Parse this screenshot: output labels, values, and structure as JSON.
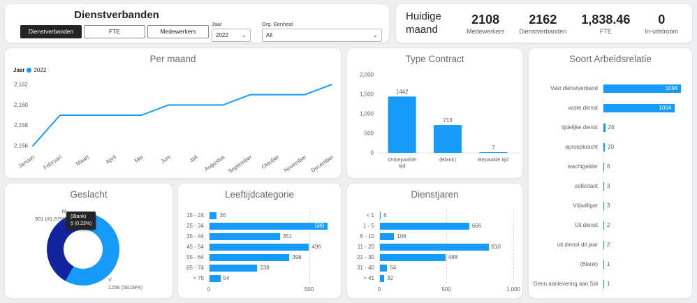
{
  "page": {
    "accent": "#169BFA",
    "donut_secondary": "#12239E",
    "blank_slice": "#333333",
    "background": "#EDEFF1",
    "tooltip_bg": "#252423"
  },
  "icons": {
    "chevron_down": "⌄"
  },
  "header": {
    "title": "Dienstverbanden",
    "tabs": [
      {
        "label": "Dienstverbanden",
        "active": true
      },
      {
        "label": "FTE",
        "active": false
      },
      {
        "label": "Medewerkers",
        "active": false
      }
    ],
    "filters": [
      {
        "label": "Jaar",
        "value": "2022"
      },
      {
        "label": "Org. Eenheid",
        "value": "All"
      }
    ]
  },
  "kpi": {
    "title": "Huidige maand",
    "items": [
      {
        "value": "2108",
        "label": "Medewerkers"
      },
      {
        "value": "2162",
        "label": "Dienstverbanden"
      },
      {
        "value": "1,838.46",
        "label": "FTE"
      },
      {
        "value": "0",
        "label": "In-uitstroom"
      }
    ]
  },
  "chart_data": [
    {
      "id": "per_maand",
      "type": "line",
      "title": "Per maand",
      "legend": {
        "label": "Jaar",
        "series": "2022",
        "position": "top-left"
      },
      "x": [
        "Januari",
        "Februari",
        "Maart",
        "April",
        "Mei",
        "Juni",
        "Juli",
        "Augustus",
        "September",
        "Oktober",
        "November",
        "December"
      ],
      "values": [
        2156,
        2159,
        2159,
        2159,
        2159,
        2160,
        2160,
        2160,
        2161,
        2161,
        2161,
        2162
      ],
      "ylim": [
        2156,
        2162
      ],
      "yticks": [
        {
          "v": 2162,
          "label": "2,162"
        },
        {
          "v": 2160,
          "label": "2,160"
        },
        {
          "v": 2158,
          "label": "2,158"
        },
        {
          "v": 2156,
          "label": "2,156"
        }
      ],
      "grid": false
    },
    {
      "id": "type_contract",
      "type": "bar",
      "title": "Type Contract",
      "categories": [
        "Onbepaalde tijd",
        "(Blank)",
        "Bepaalde tijd"
      ],
      "values": [
        1442,
        713,
        7
      ],
      "ylim": [
        0,
        2000
      ],
      "yticks": [
        {
          "v": 2000,
          "label": "2,000"
        },
        {
          "v": 1500,
          "label": "1,500"
        },
        {
          "v": 1000,
          "label": "1,000"
        },
        {
          "v": 500,
          "label": "500"
        },
        {
          "v": 0,
          "label": "0"
        }
      ]
    },
    {
      "id": "soort_arbeidsrelatie",
      "type": "bar-h",
      "title": "Soort Arbeidsrelatie",
      "categories": [
        "Vast dienstverband",
        "vaste dienst",
        "tijdelijke dienst",
        "oproepkracht",
        "wachtgelder",
        "sollicitant",
        "Vrijwilliger",
        "Uit dienst",
        "uit dienst dit jaar",
        "(Blank)",
        "Geen aanlevering aan Sal"
      ],
      "values": [
        1094,
        1004,
        26,
        20,
        6,
        3,
        3,
        2,
        2,
        1,
        1
      ],
      "xlim": [
        0,
        1100
      ]
    },
    {
      "id": "geslacht",
      "type": "pie",
      "title": "Geslacht",
      "slices": [
        {
          "name": "V",
          "value": 1256,
          "pct": "58.09%",
          "label": "1256 (58.09%)",
          "color": "#169BFA"
        },
        {
          "name": "M",
          "value": 901,
          "pct": "41.67%",
          "label": "901 (41.67%)",
          "color": "#12239E"
        },
        {
          "name": "(Blank)",
          "value": 5,
          "pct": "0.23%",
          "label": "5 (0.23%)",
          "color": "#333333"
        }
      ],
      "tooltip": {
        "lines": [
          "(Blank)",
          "5 (0.23%)"
        ]
      }
    },
    {
      "id": "leeftijdcategorie",
      "type": "bar-h",
      "title": "Leeftijdcategorie",
      "categories": [
        "15 - 24",
        "25 - 34",
        "35 - 44",
        "45 - 54",
        "55 - 64",
        "65 - 74",
        "> 75"
      ],
      "values": [
        36,
        589,
        351,
        496,
        398,
        238,
        54
      ],
      "xlim": [
        0,
        620
      ],
      "xticks": [
        {
          "v": 0,
          "label": "0",
          "grid": false
        },
        {
          "v": 500,
          "label": "500",
          "grid": true
        }
      ]
    },
    {
      "id": "dienstjaren",
      "type": "bar-h",
      "title": "Dienstjaren",
      "categories": [
        "< 1",
        "1 - 5",
        "6 - 10",
        "11 - 20",
        "21 - 30",
        "31 - 40",
        "> 41"
      ],
      "values": [
        6,
        666,
        106,
        810,
        488,
        54,
        32
      ],
      "xlim": [
        0,
        1000
      ],
      "xticks": [
        {
          "v": 0,
          "label": "0",
          "grid": false
        },
        {
          "v": 500,
          "label": "500",
          "grid": true
        },
        {
          "v": 1000,
          "label": "1,000",
          "grid": true
        }
      ]
    }
  ]
}
